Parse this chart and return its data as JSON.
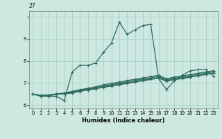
{
  "xlabel": "Humidex (Indice chaleur)",
  "bg_color": "#cce8e0",
  "grid_color": "#aad0c8",
  "line_color": "#2d6b5e",
  "xlim": [
    -0.5,
    23.5
  ],
  "ylim": [
    5.85,
    10.25
  ],
  "xticks": [
    0,
    1,
    2,
    3,
    4,
    5,
    6,
    7,
    8,
    9,
    10,
    11,
    12,
    13,
    14,
    15,
    16,
    17,
    18,
    19,
    20,
    21,
    22,
    23
  ],
  "yticks": [
    6,
    7,
    8,
    9,
    10
  ],
  "ytick_labels": [
    "6",
    "7",
    "8",
    "9",
    ""
  ],
  "top_label": "27",
  "lines": [
    {
      "x": [
        0,
        1,
        2,
        3,
        4,
        5,
        6,
        7,
        8,
        9,
        10,
        11,
        12,
        13,
        14,
        15,
        16,
        17,
        18,
        19,
        20,
        21,
        22,
        23
      ],
      "y": [
        6.5,
        6.4,
        6.4,
        6.4,
        6.2,
        7.5,
        7.8,
        7.8,
        7.9,
        8.4,
        8.8,
        9.75,
        9.2,
        9.4,
        9.6,
        9.65,
        7.2,
        6.7,
        7.1,
        7.35,
        7.55,
        7.6,
        7.6,
        7.3
      ]
    },
    {
      "x": [
        0,
        1,
        2,
        3,
        4,
        5,
        6,
        7,
        8,
        9,
        10,
        11,
        12,
        13,
        14,
        15,
        16,
        17,
        18,
        19,
        20,
        21,
        22,
        23
      ],
      "y": [
        6.5,
        6.45,
        6.45,
        6.5,
        6.5,
        6.55,
        6.62,
        6.68,
        6.74,
        6.8,
        6.86,
        6.92,
        6.98,
        7.04,
        7.1,
        7.16,
        7.22,
        7.08,
        7.15,
        7.2,
        7.26,
        7.32,
        7.38,
        7.44
      ]
    },
    {
      "x": [
        0,
        1,
        2,
        3,
        4,
        5,
        6,
        7,
        8,
        9,
        10,
        11,
        12,
        13,
        14,
        15,
        16,
        17,
        18,
        19,
        20,
        21,
        22,
        23
      ],
      "y": [
        6.5,
        6.43,
        6.43,
        6.48,
        6.53,
        6.58,
        6.64,
        6.7,
        6.76,
        6.83,
        6.89,
        6.95,
        7.01,
        7.07,
        7.13,
        7.19,
        7.25,
        7.1,
        7.18,
        7.23,
        7.28,
        7.34,
        7.4,
        7.46
      ]
    },
    {
      "x": [
        0,
        1,
        2,
        3,
        4,
        5,
        6,
        7,
        8,
        9,
        10,
        11,
        12,
        13,
        14,
        15,
        16,
        17,
        18,
        19,
        20,
        21,
        22,
        23
      ],
      "y": [
        6.5,
        6.43,
        6.43,
        6.48,
        6.53,
        6.59,
        6.66,
        6.72,
        6.79,
        6.87,
        6.93,
        6.99,
        7.06,
        7.12,
        7.18,
        7.24,
        7.3,
        7.14,
        7.22,
        7.27,
        7.33,
        7.39,
        7.45,
        7.51
      ]
    },
    {
      "x": [
        0,
        1,
        2,
        3,
        4,
        5,
        6,
        7,
        8,
        9,
        10,
        11,
        12,
        13,
        14,
        15,
        16,
        17,
        18,
        19,
        20,
        21,
        22,
        23
      ],
      "y": [
        6.5,
        6.43,
        6.46,
        6.51,
        6.55,
        6.62,
        6.7,
        6.76,
        6.83,
        6.92,
        6.98,
        7.04,
        7.11,
        7.17,
        7.23,
        7.29,
        7.35,
        7.19,
        7.27,
        7.32,
        7.38,
        7.44,
        7.5,
        7.56
      ]
    }
  ],
  "marker": "+",
  "markersize": 3,
  "linewidth": 0.9
}
